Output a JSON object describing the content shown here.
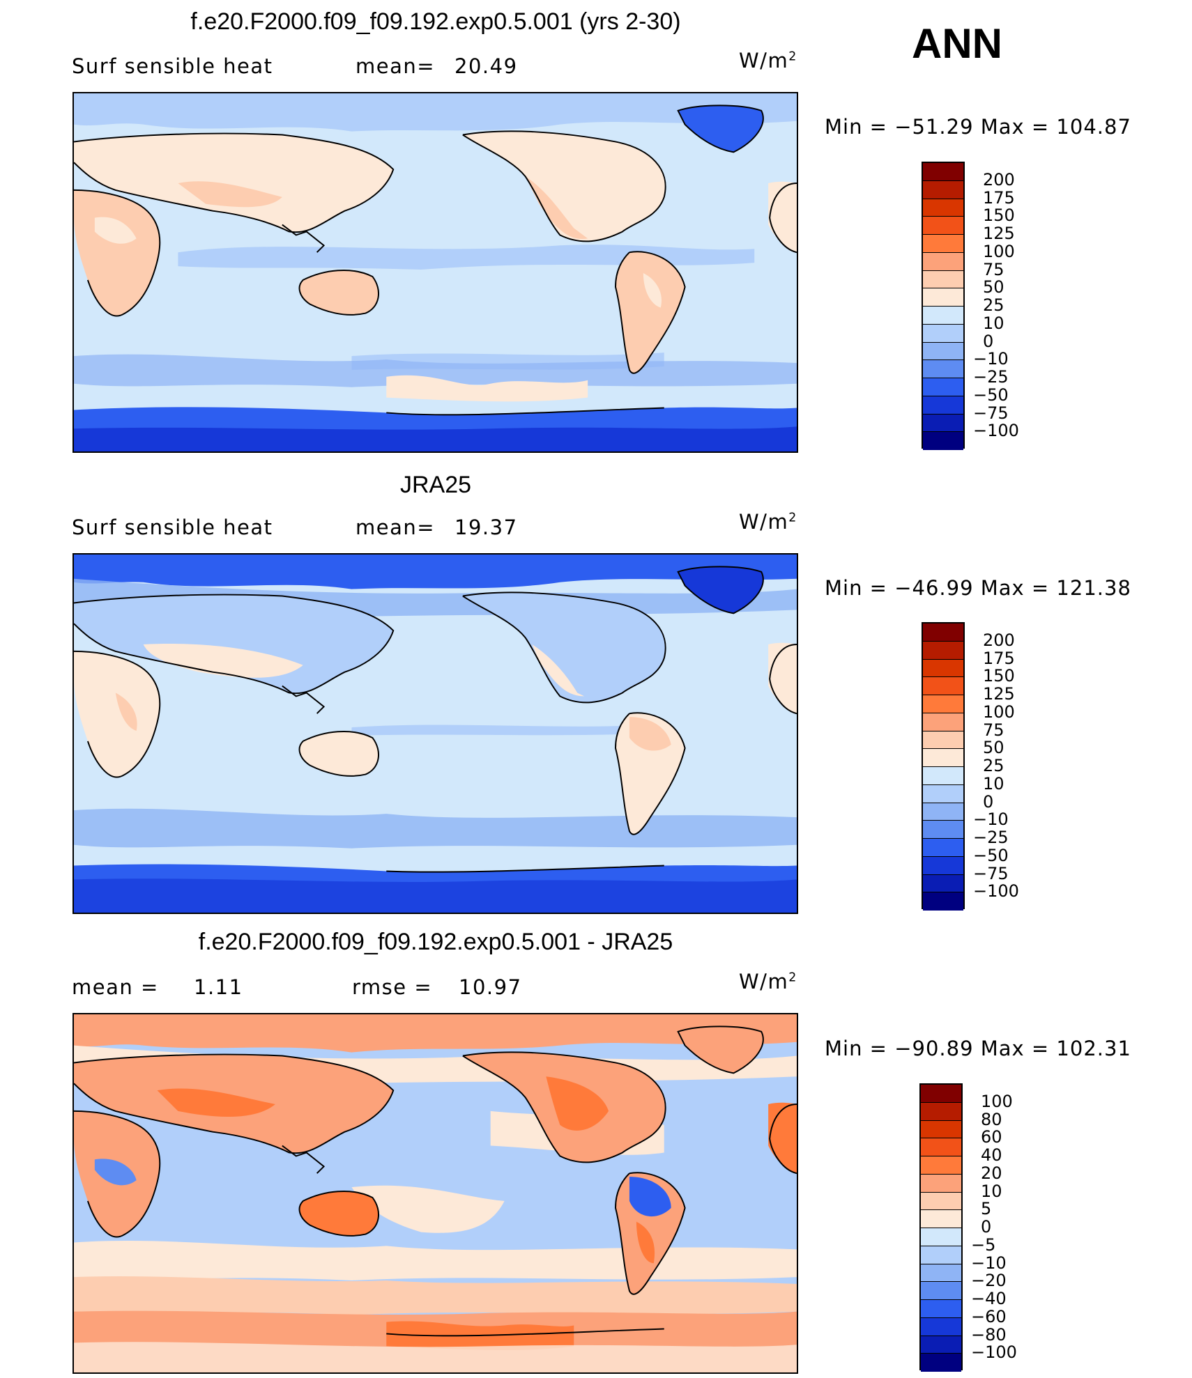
{
  "season": "ANN",
  "units": "W/m",
  "units_sup": "2",
  "panels": [
    {
      "title": "f.e20.F2000.f09_f09.192.exp0.5.001 (yrs 2-30)",
      "left_label": "Surf  sensible  heat",
      "mean_label": "mean=",
      "mean_value": "20.49",
      "minmax": "Min  =  −51.29  Max  =  104.87",
      "colorbar": {
        "labels": [
          "200",
          "175",
          "150",
          "125",
          "100",
          "75",
          "50",
          "25",
          "10",
          "0",
          "−10",
          "−25",
          "−50",
          "−75",
          "−100"
        ],
        "colors": [
          "#800000",
          "#b51c00",
          "#d93600",
          "#f25218",
          "#ff7a3a",
          "#fca27a",
          "#fdcdb0",
          "#fde9d8",
          "#d2e8fb",
          "#b1cffa",
          "#8fb4f5",
          "#5e8cf2",
          "#2d5ef0",
          "#1638d8",
          "#0a1db4",
          "#000080"
        ]
      }
    },
    {
      "title": "JRA25",
      "left_label": "Surf  sensible  heat",
      "mean_label": "mean=",
      "mean_value": "19.37",
      "minmax": "Min  =  −46.99  Max  =  121.38",
      "colorbar": {
        "labels": [
          "200",
          "175",
          "150",
          "125",
          "100",
          "75",
          "50",
          "25",
          "10",
          "0",
          "−10",
          "−25",
          "−50",
          "−75",
          "−100"
        ],
        "colors": [
          "#800000",
          "#b51c00",
          "#d93600",
          "#f25218",
          "#ff7a3a",
          "#fca27a",
          "#fdcdb0",
          "#fde9d8",
          "#d2e8fb",
          "#b1cffa",
          "#8fb4f5",
          "#5e8cf2",
          "#2d5ef0",
          "#1638d8",
          "#0a1db4",
          "#000080"
        ]
      }
    },
    {
      "title": "f.e20.F2000.f09_f09.192.exp0.5.001 - JRA25",
      "mean_label": "mean  =",
      "mean_value": "1.11",
      "rmse_label": "rmse  =",
      "rmse_value": "10.97",
      "minmax": "Min  =  −90.89  Max  =  102.31",
      "colorbar": {
        "labels": [
          "100",
          "80",
          "60",
          "40",
          "20",
          "10",
          "5",
          "0",
          "−5",
          "−10",
          "−20",
          "−40",
          "−60",
          "−80",
          "−100"
        ],
        "colors": [
          "#800000",
          "#b51c00",
          "#d93600",
          "#f25218",
          "#ff7a3a",
          "#fca27a",
          "#fdcdb0",
          "#fde9d8",
          "#d2e8fb",
          "#b1cffa",
          "#8fb4f5",
          "#5e8cf2",
          "#2d5ef0",
          "#1638d8",
          "#0a1db4",
          "#000080"
        ]
      }
    }
  ],
  "colors": {
    "ocean_light": "#d2e8fb",
    "ocean_mid": "#b1cffa",
    "ice_blue": "#2d5ef0",
    "land_warm": "#fde9d8",
    "land_hot": "#fdcdb0"
  }
}
